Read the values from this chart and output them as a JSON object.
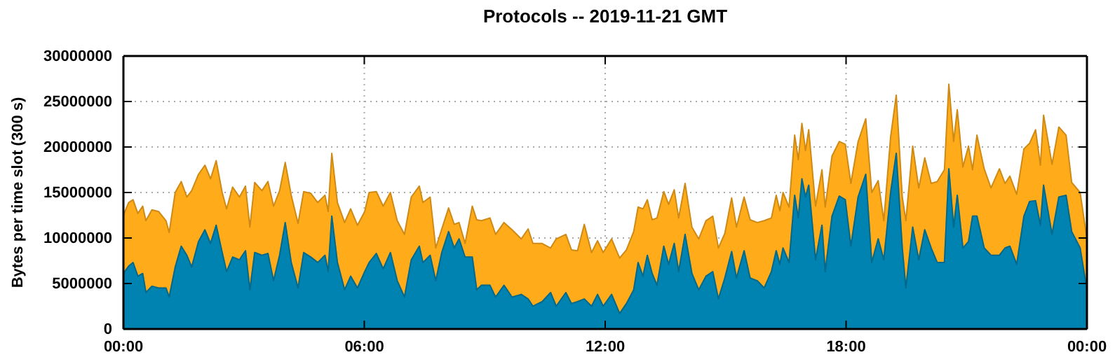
{
  "chart_data": {
    "type": "area",
    "stacked": true,
    "title": "Protocols -- 2019-11-21 GMT",
    "ylabel": "Bytes per time slot (300 s)",
    "x": [
      0,
      0.13,
      0.24,
      0.36,
      0.48,
      0.56,
      0.71,
      0.88,
      1.06,
      1.14,
      1.29,
      1.44,
      1.58,
      1.7,
      1.87,
      2.03,
      2.17,
      2.31,
      2.46,
      2.57,
      2.72,
      2.89,
      3.04,
      3.15,
      3.27,
      3.45,
      3.6,
      3.74,
      3.89,
      4.03,
      4.18,
      4.35,
      4.49,
      4.67,
      4.84,
      5.02,
      5.1,
      5.19,
      5.33,
      5.51,
      5.66,
      5.83,
      6.01,
      6.12,
      6.3,
      6.47,
      6.65,
      6.82,
      7,
      7.17,
      7.37,
      7.46,
      7.64,
      7.78,
      7.93,
      8.1,
      8.24,
      8.36,
      8.51,
      8.69,
      8.8,
      8.92,
      9.13,
      9.27,
      9.48,
      9.68,
      9.91,
      10.08,
      10.2,
      10.43,
      10.64,
      10.78,
      11.02,
      11.16,
      11.31,
      11.48,
      11.66,
      11.81,
      11.95,
      12.16,
      12.36,
      12.53,
      12.71,
      12.82,
      12.94,
      13.05,
      13.17,
      13.29,
      13.46,
      13.58,
      13.72,
      13.83,
      13.99,
      14.16,
      14.33,
      14.51,
      14.68,
      14.82,
      14.98,
      15.15,
      15.27,
      15.46,
      15.61,
      15.79,
      15.96,
      16.14,
      16.26,
      16.35,
      16.43,
      16.58,
      16.72,
      16.81,
      16.9,
      16.99,
      17.07,
      17.24,
      17.4,
      17.48,
      17.65,
      17.83,
      17.98,
      18.12,
      18.3,
      18.49,
      18.64,
      18.8,
      18.94,
      19.11,
      19.25,
      19.4,
      19.49,
      19.66,
      19.81,
      19.96,
      20.12,
      20.27,
      20.45,
      20.56,
      20.68,
      20.77,
      20.91,
      21.05,
      21.15,
      21.26,
      21.44,
      21.61,
      21.82,
      21.96,
      22.08,
      22.25,
      22.43,
      22.57,
      22.72,
      22.84,
      22.92,
      23.13,
      23.3,
      23.48,
      23.62,
      23.83,
      24
    ],
    "series": [
      {
        "color": "#0083b0",
        "values": [
          6100000,
          6900000,
          7300000,
          5800000,
          6100000,
          4000000,
          4700000,
          4500000,
          4500000,
          3500000,
          6800000,
          9100000,
          8100000,
          6800000,
          9600000,
          10900000,
          9400000,
          11400000,
          8400000,
          6300000,
          7900000,
          7600000,
          8600000,
          4300000,
          8400000,
          8100000,
          8300000,
          5300000,
          8100000,
          11700000,
          7300000,
          4500000,
          8400000,
          7900000,
          7300000,
          8100000,
          6300000,
          12400000,
          7300000,
          4300000,
          5800000,
          4500000,
          6300000,
          7300000,
          8300000,
          6600000,
          8400000,
          5300000,
          3500000,
          7600000,
          9100000,
          7300000,
          8100000,
          5300000,
          8400000,
          10700000,
          8900000,
          9900000,
          7900000,
          7900000,
          4300000,
          4800000,
          4800000,
          3500000,
          4800000,
          3500000,
          3800000,
          3300000,
          2500000,
          3000000,
          4000000,
          2500000,
          4000000,
          2800000,
          3000000,
          3300000,
          2500000,
          3800000,
          2500000,
          3800000,
          1700000,
          2800000,
          4300000,
          7300000,
          5800000,
          8100000,
          6100000,
          4800000,
          9100000,
          7100000,
          9400000,
          6300000,
          10400000,
          6100000,
          4300000,
          5800000,
          6300000,
          3300000,
          5600000,
          8500000,
          5600000,
          8600000,
          5600000,
          5300000,
          4500000,
          6300000,
          8600000,
          7100000,
          8900000,
          7300000,
          14700000,
          12200000,
          16500000,
          14500000,
          15800000,
          7600000,
          11400000,
          6300000,
          12400000,
          14600000,
          14200000,
          9100000,
          14500000,
          17000000,
          7300000,
          9900000,
          7600000,
          15000000,
          19300000,
          8900000,
          4500000,
          11200000,
          7600000,
          10900000,
          8900000,
          7300000,
          7300000,
          17600000,
          11200000,
          14700000,
          8900000,
          9600000,
          12400000,
          12400000,
          8900000,
          8100000,
          8100000,
          8900000,
          9100000,
          7100000,
          12400000,
          14000000,
          14100000,
          11400000,
          15800000,
          10400000,
          14500000,
          14700000,
          10700000,
          8900000,
          4300000
        ]
      },
      {
        "color": "#ffab1a",
        "values": [
          6400000,
          7000000,
          6900000,
          6900000,
          7400000,
          7900000,
          8400000,
          8400000,
          7400000,
          7100000,
          8200000,
          7100000,
          6400000,
          8400000,
          7400000,
          7100000,
          7100000,
          7100000,
          6600000,
          6900000,
          7700000,
          6900000,
          7100000,
          6900000,
          7700000,
          7100000,
          7900000,
          8200000,
          7100000,
          6600000,
          7400000,
          7100000,
          6700000,
          7000000,
          6600000,
          6600000,
          6600000,
          6900000,
          6600000,
          7400000,
          7400000,
          6900000,
          6600000,
          7700000,
          6800000,
          6900000,
          6600000,
          6600000,
          6900000,
          6900000,
          6600000,
          6600000,
          6400000,
          3600000,
          2600000,
          2600000,
          2600000,
          1800000,
          1500000,
          5600000,
          7700000,
          7100000,
          7400000,
          6900000,
          6900000,
          7400000,
          6100000,
          7700000,
          6900000,
          6400000,
          4900000,
          7400000,
          6400000,
          5900000,
          5600000,
          8200000,
          5900000,
          5900000,
          5900000,
          6100000,
          6100000,
          5900000,
          6400000,
          6100000,
          7400000,
          6100000,
          5900000,
          7400000,
          6000000,
          6600000,
          5900000,
          5900000,
          5600000,
          5100000,
          5600000,
          6100000,
          6100000,
          5600000,
          4900000,
          5900000,
          5600000,
          5900000,
          6400000,
          6400000,
          7400000,
          5900000,
          6100000,
          5900000,
          6100000,
          6100000,
          6600000,
          6400000,
          6100000,
          5100000,
          6100000,
          5900000,
          6100000,
          7100000,
          6600000,
          6000000,
          6100000,
          6900000,
          6100000,
          6100000,
          7700000,
          6400000,
          4300000,
          6100000,
          6400000,
          5600000,
          7400000,
          8900000,
          7900000,
          7900000,
          7100000,
          8900000,
          10200000,
          9300000,
          9400000,
          9400000,
          8900000,
          10500000,
          5100000,
          8900000,
          8700000,
          7400000,
          9500000,
          7100000,
          7700000,
          7700000,
          7400000,
          6400000,
          7800000,
          6600000,
          7700000,
          7700000,
          7700000,
          6600000,
          5400000,
          6100000,
          5600000
        ]
      }
    ],
    "xlim": [
      0,
      24
    ],
    "xticks": [
      {
        "value": 0,
        "label": "00:00"
      },
      {
        "value": 6,
        "label": "06:00"
      },
      {
        "value": 12,
        "label": "12:00"
      },
      {
        "value": 18,
        "label": "18:00"
      },
      {
        "value": 24,
        "label": "00:00"
      }
    ],
    "ylim": [
      0,
      30000000
    ],
    "yticks": [
      0,
      5000000,
      10000000,
      15000000,
      20000000,
      25000000,
      30000000
    ],
    "grid": true
  }
}
